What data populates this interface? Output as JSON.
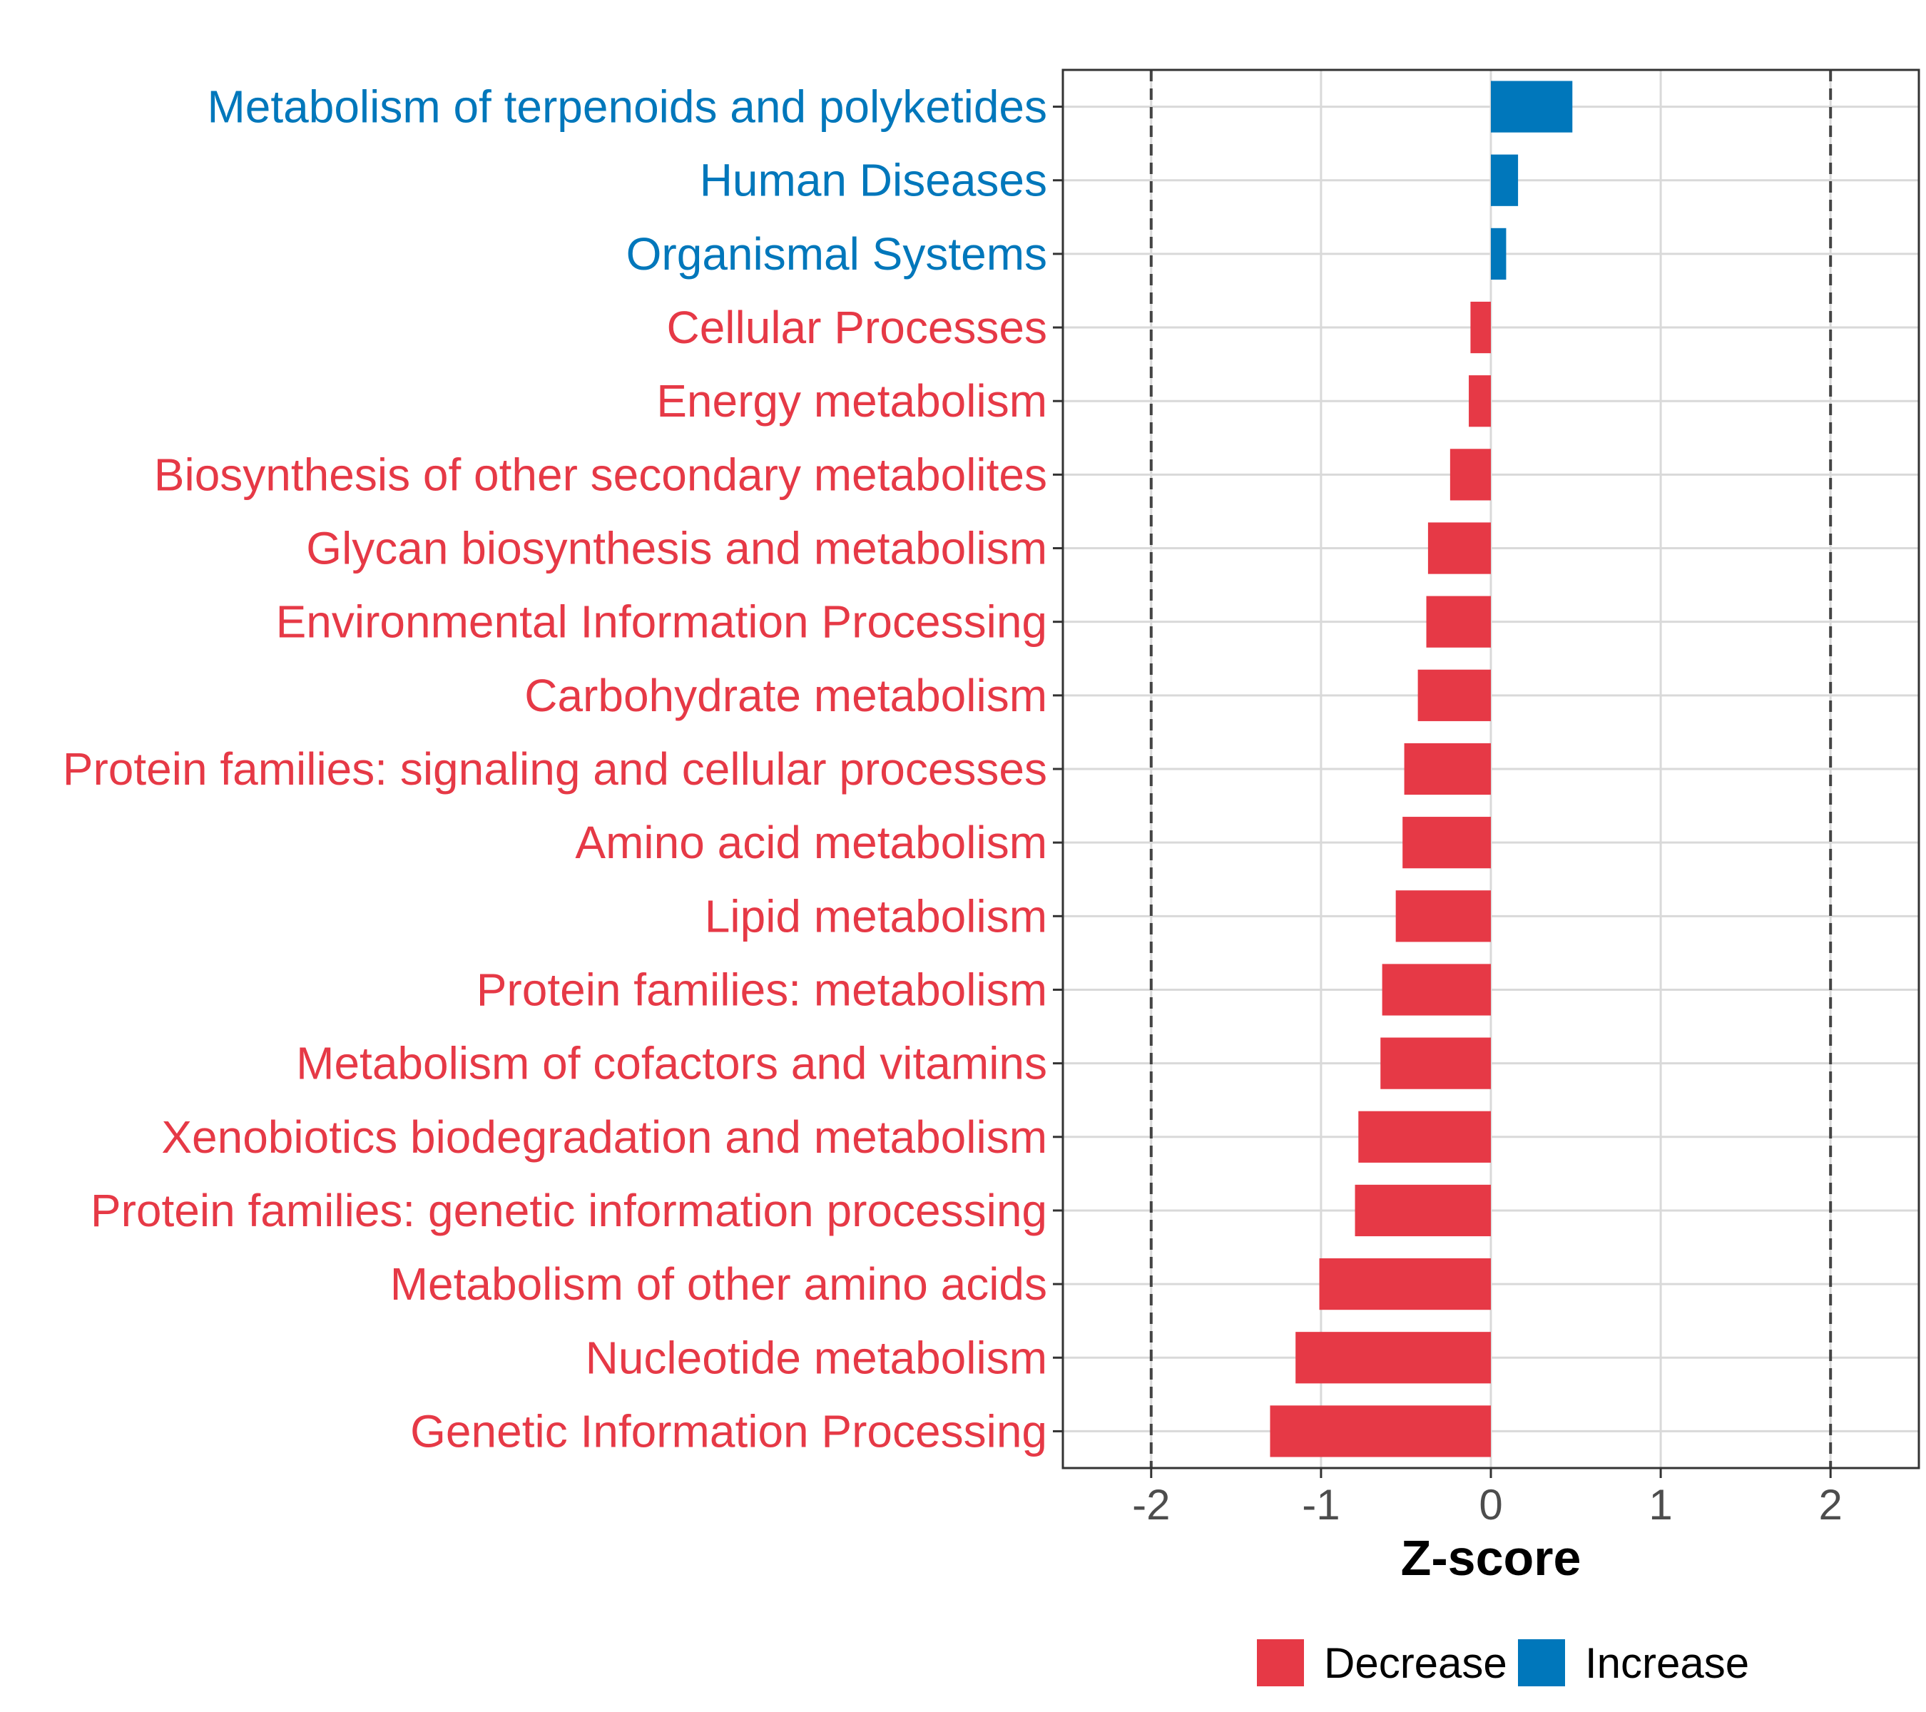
{
  "chart_data": {
    "type": "bar",
    "orientation": "horizontal",
    "categories": [
      "Metabolism of terpenoids and polyketides",
      "Human Diseases",
      "Organismal Systems",
      "Cellular Processes",
      "Energy metabolism",
      "Biosynthesis of other secondary metabolites",
      "Glycan biosynthesis and metabolism",
      "Environmental Information Processing",
      "Carbohydrate metabolism",
      "Protein families: signaling and cellular processes",
      "Amino acid metabolism",
      "Lipid metabolism",
      "Protein families: metabolism",
      "Metabolism of cofactors and vitamins",
      "Xenobiotics biodegradation and metabolism",
      "Protein families: genetic information processing",
      "Metabolism of other amino acids",
      "Nucleotide metabolism",
      "Genetic Information Processing"
    ],
    "values": [
      0.48,
      0.16,
      0.09,
      -0.12,
      -0.13,
      -0.24,
      -0.37,
      -0.38,
      -0.43,
      -0.51,
      -0.52,
      -0.56,
      -0.64,
      -0.65,
      -0.78,
      -0.8,
      -1.01,
      -1.15,
      -1.3
    ],
    "groups": [
      "Increase",
      "Increase",
      "Increase",
      "Decrease",
      "Decrease",
      "Decrease",
      "Decrease",
      "Decrease",
      "Decrease",
      "Decrease",
      "Decrease",
      "Decrease",
      "Decrease",
      "Decrease",
      "Decrease",
      "Decrease",
      "Decrease",
      "Decrease",
      "Decrease"
    ],
    "xlabel": "Z-score",
    "ylabel": "",
    "xlim": [
      -2.52,
      2.52
    ],
    "xticks": [
      -2,
      -1,
      0,
      1,
      2
    ],
    "xtick_labels": [
      "-2",
      "-1",
      "0",
      "1",
      "2"
    ],
    "reference_lines": [
      -2,
      2
    ],
    "grid": true,
    "legend": {
      "position": "bottom",
      "entries": [
        {
          "label": "Decrease",
          "color": "#E63946"
        },
        {
          "label": "Increase",
          "color": "#0077BB"
        }
      ]
    },
    "colors": {
      "Decrease": "#E63946",
      "Increase": "#0077BB"
    }
  }
}
